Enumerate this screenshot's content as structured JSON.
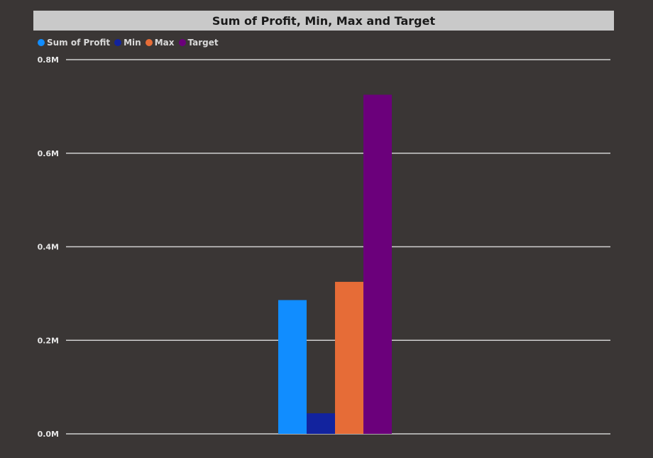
{
  "chart_data": {
    "type": "bar",
    "title": "Sum of Profit, Min, Max and Target",
    "categories": [
      ""
    ],
    "series": [
      {
        "name": "Sum of Profit",
        "values": [
          286000
        ],
        "color": "#118dff"
      },
      {
        "name": "Min",
        "values": [
          44000
        ],
        "color": "#12239e"
      },
      {
        "name": "Max",
        "values": [
          325000
        ],
        "color": "#e66c37"
      },
      {
        "name": "Target",
        "values": [
          725000
        ],
        "color": "#6b007b"
      }
    ],
    "xlabel": "",
    "ylabel": "",
    "ylim": [
      0,
      800000
    ],
    "yticks": [
      {
        "value": 0,
        "label": "0.0M"
      },
      {
        "value": 200000,
        "label": "0.2M"
      },
      {
        "value": 400000,
        "label": "0.4M"
      },
      {
        "value": 600000,
        "label": "0.6M"
      },
      {
        "value": 800000,
        "label": "0.8M"
      }
    ],
    "grid": true,
    "legend_position": "top-left"
  }
}
